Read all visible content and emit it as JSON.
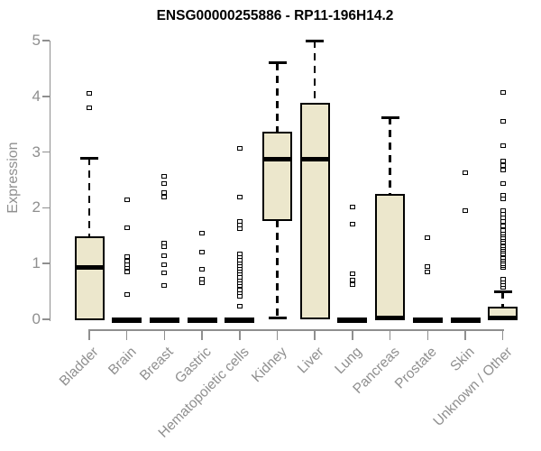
{
  "title": "ENSG00000255886 - RP11-196H14.2",
  "ylabel": "Expression",
  "colors": {
    "box_fill": "#ECE7CC",
    "box_border": "#000000",
    "median": "#000000",
    "axis": "#8F8F8F",
    "tick_label": "#8F8F8F",
    "title": "#000000",
    "background": "#FFFFFF"
  },
  "chart_data": {
    "type": "boxplot",
    "title": "ENSG00000255886 - RP11-196H14.2",
    "xlabel": "",
    "ylabel": "Expression",
    "ylim": [
      0,
      5
    ],
    "y_ticks": [
      0,
      1,
      2,
      3,
      4,
      5
    ],
    "grid": false,
    "legend": false,
    "categories": [
      "Bladder",
      "Brain",
      "Breast",
      "Gastric",
      "Hematopoietic cells",
      "Kidney",
      "Liver",
      "Lung",
      "Pancreas",
      "Prostate",
      "Skin",
      "Unknown / Other"
    ],
    "boxes": [
      {
        "label": "Bladder",
        "q1": 0,
        "median": 0.93,
        "q3": 1.48,
        "whisker_low": 0,
        "whisker_high": 2.89,
        "outliers": [
          3.8,
          4.05
        ]
      },
      {
        "label": "Brain",
        "q1": 0,
        "median": 0,
        "q3": 0,
        "whisker_low": 0,
        "whisker_high": 0,
        "outliers": [
          0.44,
          0.85,
          0.93,
          0.98,
          1.04,
          1.12,
          1.64,
          2.15
        ]
      },
      {
        "label": "Breast",
        "q1": 0,
        "median": 0,
        "q3": 0,
        "whisker_low": 0,
        "whisker_high": 0,
        "outliers": [
          0.61,
          0.83,
          0.98,
          1.14,
          1.3,
          1.37,
          2.2,
          2.27,
          2.44,
          2.57
        ]
      },
      {
        "label": "Gastric",
        "q1": 0,
        "median": 0,
        "q3": 0,
        "whisker_low": 0,
        "whisker_high": 0,
        "outliers": [
          0.65,
          0.72,
          0.9,
          1.21,
          1.55
        ]
      },
      {
        "label": "Hematopoietic cells",
        "q1": 0,
        "median": 0,
        "q3": 0,
        "whisker_low": 0,
        "whisker_high": 0,
        "outliers": [
          0.23,
          0.42,
          0.47,
          0.52,
          0.6,
          0.65,
          0.7,
          0.76,
          0.81,
          0.86,
          0.91,
          0.96,
          1.01,
          1.06,
          1.12,
          1.17,
          1.62,
          1.69,
          1.76,
          2.2,
          3.06
        ]
      },
      {
        "label": "Kidney",
        "q1": 1.78,
        "median": 2.88,
        "q3": 3.35,
        "whisker_low": 0.02,
        "whisker_high": 4.6,
        "outliers": []
      },
      {
        "label": "Liver",
        "q1": 0.02,
        "median": 2.88,
        "q3": 3.87,
        "whisker_low": 0.02,
        "whisker_high": 5.0,
        "outliers": []
      },
      {
        "label": "Lung",
        "q1": 0,
        "median": 0,
        "q3": 0,
        "whisker_low": 0,
        "whisker_high": 0,
        "outliers": [
          0.63,
          0.71,
          0.81,
          1.71,
          2.01
        ]
      },
      {
        "label": "Pancreas",
        "q1": 0,
        "median": 0.03,
        "q3": 2.23,
        "whisker_low": 0,
        "whisker_high": 3.62,
        "outliers": []
      },
      {
        "label": "Prostate",
        "q1": 0,
        "median": 0,
        "q3": 0,
        "whisker_low": 0,
        "whisker_high": 0,
        "outliers": [
          0.85,
          0.95,
          1.47
        ]
      },
      {
        "label": "Skin",
        "q1": 0,
        "median": 0,
        "q3": 0,
        "whisker_low": 0,
        "whisker_high": 0,
        "outliers": [
          1.95,
          2.63
        ]
      },
      {
        "label": "Unknown / Other",
        "q1": 0,
        "median": 0.02,
        "q3": 0.21,
        "whisker_low": 0,
        "whisker_high": 0.5,
        "outliers": [
          0.58,
          0.62,
          0.67,
          0.72,
          0.93,
          0.97,
          1.0,
          1.04,
          1.08,
          1.11,
          1.15,
          1.18,
          1.22,
          1.25,
          1.29,
          1.32,
          1.36,
          1.39,
          1.43,
          1.47,
          1.51,
          1.55,
          1.6,
          1.68,
          1.76,
          1.82,
          1.89,
          1.95,
          2.16,
          2.23,
          2.44,
          2.68,
          2.76,
          2.84,
          3.11,
          3.55,
          4.07
        ]
      }
    ]
  }
}
